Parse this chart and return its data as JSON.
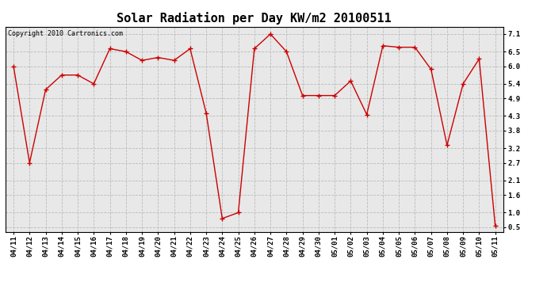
{
  "title": "Solar Radiation per Day KW/m2 20100511",
  "copyright_text": "Copyright 2010 Cartronics.com",
  "dates": [
    "04/11",
    "04/12",
    "04/13",
    "04/14",
    "04/15",
    "04/16",
    "04/17",
    "04/18",
    "04/19",
    "04/20",
    "04/21",
    "04/22",
    "04/23",
    "04/24",
    "04/25",
    "04/26",
    "04/27",
    "04/28",
    "04/29",
    "04/30",
    "05/01",
    "05/02",
    "05/03",
    "05/04",
    "05/05",
    "05/06",
    "05/07",
    "05/08",
    "05/09",
    "05/10",
    "05/11"
  ],
  "values": [
    6.0,
    2.7,
    5.2,
    5.7,
    5.7,
    5.4,
    6.6,
    6.5,
    6.2,
    6.3,
    6.2,
    6.6,
    4.4,
    0.8,
    1.0,
    6.6,
    7.1,
    6.5,
    5.0,
    5.0,
    5.0,
    5.5,
    4.35,
    6.7,
    6.65,
    6.65,
    5.9,
    3.3,
    5.4,
    6.25,
    0.55
  ],
  "line_color": "#cc0000",
  "marker": "+",
  "marker_color": "#cc0000",
  "background_color": "#ffffff",
  "plot_bg_color": "#e8e8e8",
  "grid_color": "#bbbbbb",
  "yticks": [
    0.5,
    1.0,
    1.6,
    2.1,
    2.7,
    3.2,
    3.8,
    4.3,
    4.9,
    5.4,
    6.0,
    6.5,
    7.1
  ],
  "ylim": [
    0.35,
    7.35
  ],
  "title_fontsize": 11,
  "tick_fontsize": 6.5,
  "copyright_fontsize": 6
}
